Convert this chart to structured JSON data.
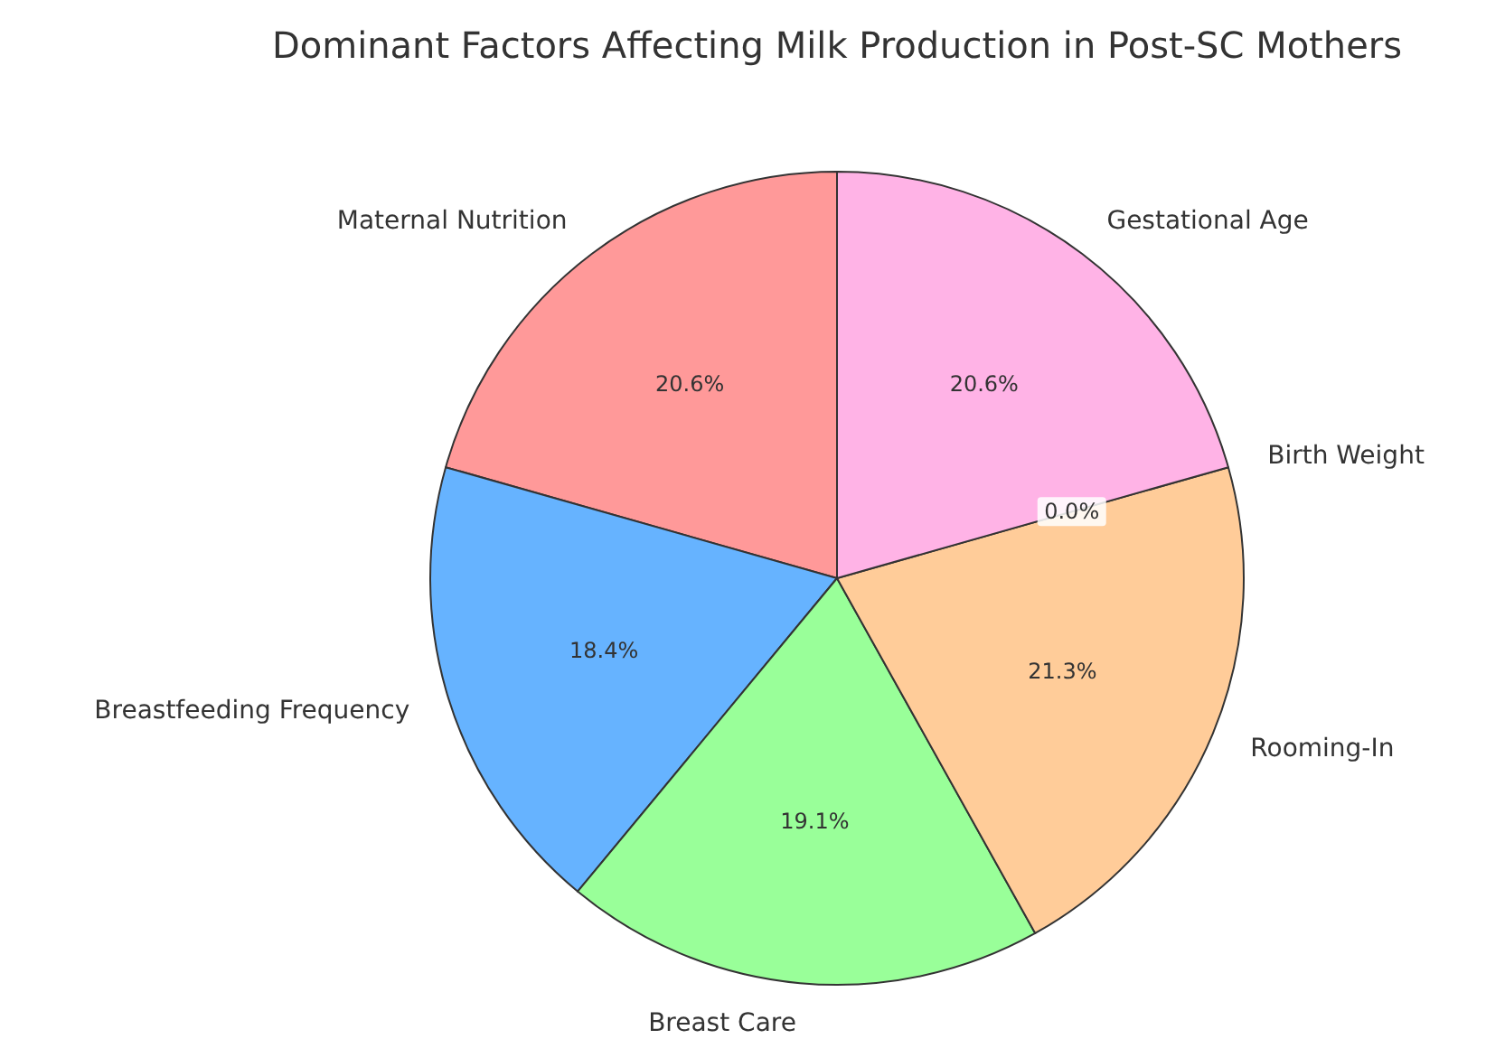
{
  "chart_data": {
    "type": "pie",
    "title": "Dominant Factors Affecting Milk Production in Post-SC Mothers",
    "categories": [
      "Maternal Nutrition",
      "Breastfeeding Frequency",
      "Breast Care",
      "Rooming-In",
      "Birth Weight",
      "Gestational Age"
    ],
    "values": [
      20.6,
      18.4,
      19.1,
      21.3,
      0.0,
      20.6
    ],
    "colors": [
      "#ff9999",
      "#66b3ff",
      "#99ff99",
      "#ffcc99",
      null,
      "#ffb3e6"
    ],
    "value_labels": [
      "20.6%",
      "18.4%",
      "19.1%",
      "21.3%",
      "0.0%",
      "20.6%"
    ]
  }
}
